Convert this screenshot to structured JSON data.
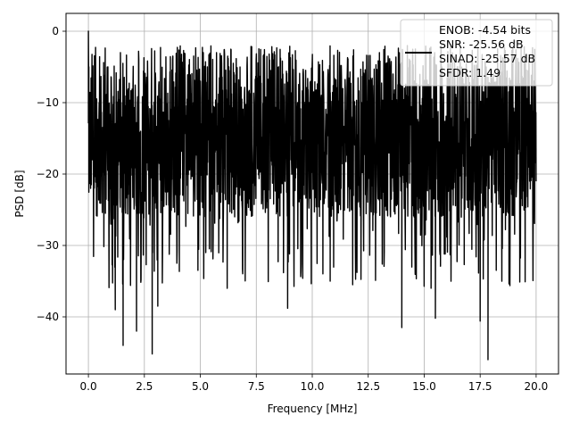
{
  "chart_data": {
    "type": "line",
    "title": "",
    "xlabel": "Frequency [MHz]",
    "ylabel": "PSD [dB]",
    "xlim": [
      -1.0,
      21.0
    ],
    "ylim": [
      -48.0,
      2.5
    ],
    "x_ticks": [
      0.0,
      2.5,
      5.0,
      7.5,
      10.0,
      12.5,
      15.0,
      17.5,
      20.0
    ],
    "x_tick_labels": [
      "0.0",
      "2.5",
      "5.0",
      "7.5",
      "10.0",
      "12.5",
      "15.0",
      "17.5",
      "20.0"
    ],
    "y_ticks": [
      0,
      -10,
      -20,
      -30,
      -40
    ],
    "y_tick_labels": [
      "0",
      "−10",
      "−20",
      "−30",
      "−40"
    ],
    "grid": true,
    "legend_position": "top-right",
    "legend_lines": [
      "ENOB: -4.54 bits",
      "SNR: -25.56 dB",
      "SINAD: -25.57 dB",
      "SFDR: 1.49"
    ],
    "series": [
      {
        "color": "#000000",
        "x_range": [
          0.0,
          20.0
        ],
        "num_points": 2000,
        "sample_points": [
          {
            "x": 0.0,
            "y": 0.0
          },
          {
            "x": 0.02,
            "y": -5.0
          },
          {
            "x": 0.05,
            "y": -9.5
          },
          {
            "x": 0.1,
            "y": -22.0
          },
          {
            "x": 1.2,
            "y": -39.0
          },
          {
            "x": 1.55,
            "y": -44.0
          },
          {
            "x": 2.15,
            "y": -42.0
          },
          {
            "x": 2.85,
            "y": -45.2
          },
          {
            "x": 3.1,
            "y": -38.5
          },
          {
            "x": 6.2,
            "y": -36.0
          },
          {
            "x": 8.9,
            "y": -38.8
          },
          {
            "x": 10.8,
            "y": -35.0
          },
          {
            "x": 14.0,
            "y": -41.5
          },
          {
            "x": 15.5,
            "y": -40.2
          },
          {
            "x": 17.5,
            "y": -40.6
          },
          {
            "x": 17.85,
            "y": -46.0
          },
          {
            "x": 10.0,
            "y": -4.0
          },
          {
            "x": 13.0,
            "y": -3.0
          }
        ],
        "typical_envelope": {
          "upper": -6.0,
          "lower": -26.0
        }
      }
    ]
  },
  "colors": {
    "line": "#000000",
    "grid": "#b0b0b0",
    "axes": "#000000",
    "background": "#ffffff"
  }
}
